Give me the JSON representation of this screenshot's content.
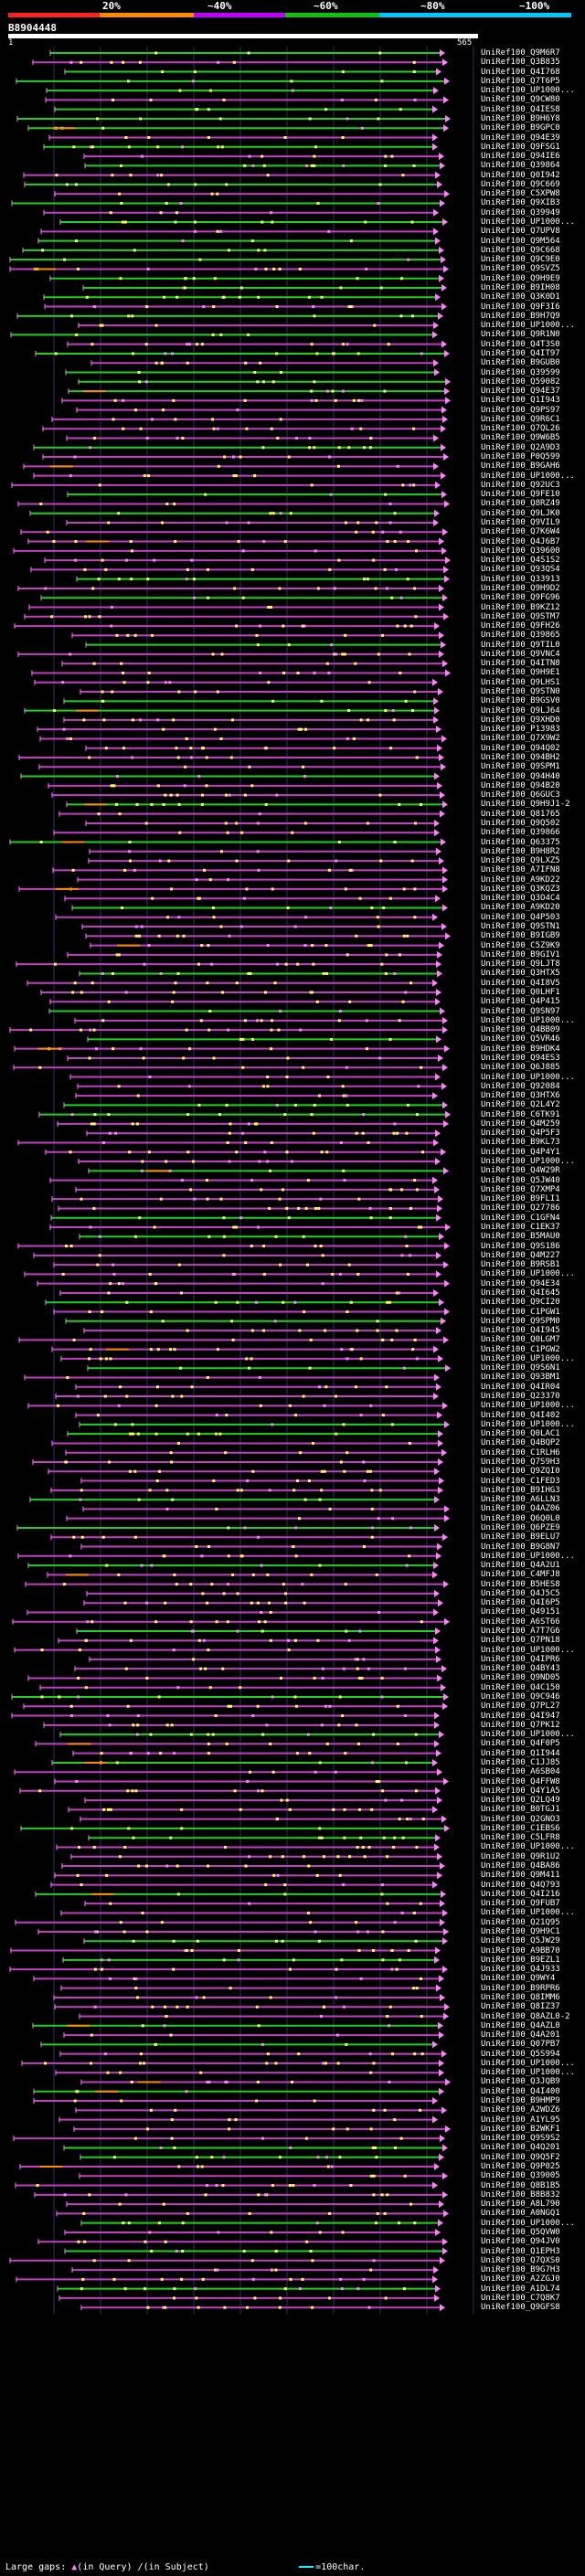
{
  "scale": {
    "labels": [
      "20%",
      "~40%",
      "~60%",
      "~80%",
      "~100%"
    ],
    "colors": [
      "#ff2020",
      "#ff8c00",
      "#c000ff",
      "#10c010",
      "#00c8ff"
    ]
  },
  "query": {
    "name": "B8904448",
    "start": "1",
    "end": "565"
  },
  "footer": {
    "gaps_label": "Large gaps:",
    "in_query": "(in Query)",
    "in_subject": "(in Subject)",
    "scale_label": "=100char.",
    "scale_color": "#00ffff"
  },
  "colors": {
    "purple": "#c040c0",
    "green": "#20d020",
    "pink": "#ff80ff",
    "yellow": "#ffff60",
    "orange": "#ff8c00",
    "grid": "#303060"
  },
  "hits": [
    "UniRef100_Q9M6R7",
    "UniRef100_Q3B835",
    "UniRef100_Q4I768",
    "UniRef100_Q7T6P5",
    "UniRef100_UP1000...",
    "UniRef100_Q9CW80",
    "UniRef100_Q4IES8",
    "UniRef100_B9H6Y8",
    "UniRef100_B9GPC0",
    "UniRef100_Q94E39",
    "UniRef100_Q9FSG1",
    "UniRef100_Q94IE6",
    "UniRef100_Q39864",
    "UniRef100_Q0I942",
    "UniRef100_Q9C669",
    "UniRef100_C5XPW8",
    "UniRef100_Q9XIB3",
    "UniRef100_Q39949",
    "UniRef100_UP1000...",
    "UniRef100_Q7UPV8",
    "UniRef100_Q9M564",
    "UniRef100_Q9C668",
    "UniRef100_Q9C9E0",
    "UniRef100_Q9SVZ5",
    "UniRef100_Q9H9E9",
    "UniRef100_B9IH08",
    "UniRef100_Q3K0D1",
    "UniRef100_Q9F3I6",
    "UniRef100_B9H7Q9",
    "UniRef100_UP1000...",
    "UniRef100_Q9R1N0",
    "UniRef100_Q4T3S0",
    "UniRef100_Q4IT97",
    "UniRef100_B9GUB0",
    "UniRef100_Q39599",
    "UniRef100_Q59082",
    "UniRef100_Q94E37",
    "UniRef100_Q1I943",
    "UniRef100_Q9PS97",
    "UniRef100_Q9R6C1",
    "UniRef100_Q7QL26",
    "UniRef100_Q9W6B5",
    "UniRef100_Q2A9D3",
    "UniRef100_P0Q599",
    "UniRef100_B9GAH6",
    "UniRef100_UP1000...",
    "UniRef100_Q92UC3",
    "UniRef100_Q9FE10",
    "UniRef100_Q8RZ49",
    "UniRef100_Q9LJK0",
    "UniRef100_Q9VIL9",
    "UniRef100_Q7K6W4",
    "UniRef100_Q4J6B7",
    "UniRef100_Q39600",
    "UniRef100_Q4S1S2",
    "UniRef100_Q93QS4",
    "UniRef100_Q33913",
    "UniRef100_Q9H9D2",
    "UniRef100_Q9FG96",
    "UniRef100_B9KZ12",
    "UniRef100_Q9STM7",
    "UniRef100_Q9FH26",
    "UniRef100_Q39865",
    "UniRef100_Q9TIL0",
    "UniRef100_Q9VNC4",
    "UniRef100_Q4ITN8",
    "UniRef100_Q9H9E1",
    "UniRef100_Q9LHS1",
    "UniRef100_Q9STN0",
    "UniRef100_B9GSV0",
    "UniRef100_Q9LJ64",
    "UniRef100_Q9XHD0",
    "UniRef100_P13983",
    "UniRef100_Q7X9W2",
    "UniRef100_Q94Q02",
    "UniRef100_Q94BH2",
    "UniRef100_Q9SPM1",
    "UniRef100_Q94H40",
    "UniRef100_Q94B20",
    "UniRef100_Q6GUC3",
    "UniRef100_Q9H9J1-2",
    "UniRef100_Q81765",
    "UniRef100_Q9Q502",
    "UniRef100_Q39866",
    "UniRef100_Q63375",
    "UniRef100_B9H8R2",
    "UniRef100_Q9LXZ5",
    "UniRef100_A7IFN8",
    "UniRef100_A9KD22",
    "UniRef100_Q3KQZ3",
    "UniRef100_Q3O4C4",
    "UniRef100_A9KD20",
    "UniRef100_Q4P503",
    "UniRef100_Q9STN1",
    "UniRef100_B9IGB9",
    "UniRef100_C5Z9K9",
    "UniRef100_B9GIV1",
    "UniRef100_Q9LJT8",
    "UniRef100_Q3HTX5",
    "UniRef100_Q4I8V5",
    "UniRef100_Q0LHF1",
    "UniRef100_Q4P415",
    "UniRef100_Q9SN97",
    "UniRef100_UP1000...",
    "UniRef100_Q4BB09",
    "UniRef100_Q5VR46",
    "UniRef100_B9HDK4",
    "UniRef100_Q94ES3",
    "UniRef100_Q6J885",
    "UniRef100_UP1000...",
    "UniRef100_Q92084",
    "UniRef100_Q3HTX6",
    "UniRef100_Q2L4Y2",
    "UniRef100_C6TK91",
    "UniRef100_Q4M259",
    "UniRef100_Q4P5F3",
    "UniRef100_B9KL73",
    "UniRef100_Q4P4Y1",
    "UniRef100_UP1000...",
    "UniRef100_Q4W29R",
    "UniRef100_Q5JW40",
    "UniRef100_Q7XMP4",
    "UniRef100_B9FLI1",
    "UniRef100_Q27786",
    "UniRef100_C1GFN4",
    "UniRef100_C1EK37",
    "UniRef100_B5MAU0",
    "UniRef100_Q9S186",
    "UniRef100_Q4M227",
    "UniRef100_B9RSB1",
    "UniRef100_UP1000...",
    "UniRef100_Q94E34",
    "UniRef100_Q4I645",
    "UniRef100_Q9CI20",
    "UniRef100_C1PGW1",
    "UniRef100_Q9SPM0",
    "UniRef100_Q4I945",
    "UniRef100_Q0LGM7",
    "UniRef100_C1PGW2",
    "UniRef100_UP1000...",
    "UniRef100_Q9S6N1",
    "UniRef100_Q93BM1",
    "UniRef100_Q4IR04",
    "UniRef100_Q23370",
    "UniRef100_UP1000...",
    "UniRef100_Q4I402",
    "UniRef100_UP1000...",
    "UniRef100_Q0LAC1",
    "UniRef100_Q4BQP2",
    "UniRef100_C1RLH6",
    "UniRef100_Q7S9H3",
    "UniRef100_Q9ZQI0",
    "UniRef100_C1FED3",
    "UniRef100_B9IHG3",
    "UniRef100_A6LLN3",
    "UniRef100_Q4AZ06",
    "UniRef100_Q6Q0L0",
    "UniRef100_Q6PZE9",
    "UniRef100_B9ELU7",
    "UniRef100_B9G8N7",
    "UniRef100_UP1000...",
    "UniRef100_Q4A2U1",
    "UniRef100_C4MFJ8",
    "UniRef100_B5HES8",
    "UniRef100_Q4J5C5",
    "UniRef100_Q4I6P5",
    "UniRef100_Q49151",
    "UniRef100_A6ST66",
    "UniRef100_A7T7G6",
    "UniRef100_Q7PN18",
    "UniRef100_UP1000...",
    "UniRef100_Q4IPR6",
    "UniRef100_Q4BY43",
    "UniRef100_Q9ND05",
    "UniRef100_Q4C150",
    "UniRef100_Q9C946",
    "UniRef100_Q7PL27",
    "UniRef100_Q4I947",
    "UniRef100_Q7PK12",
    "UniRef100_UP1000...",
    "UniRef100_Q4F0P5",
    "UniRef100_Q1I944",
    "UniRef100_C1JJ85",
    "UniRef100_A6SB04",
    "UniRef100_Q4FFW8",
    "UniRef100_Q4Y1A5",
    "UniRef100_Q2LQ49",
    "UniRef100_B0TGJ1",
    "UniRef100_Q2GNO3",
    "UniRef100_C1EBS6",
    "UniRef100_C5LFR8",
    "UniRef100_UP1000...",
    "UniRef100_Q9R1U2",
    "UniRef100_Q4BA86",
    "UniRef100_Q9M411",
    "UniRef100_Q4Q793",
    "UniRef100_Q4I216",
    "UniRef100_Q9FUB7",
    "UniRef100_UP1000...",
    "UniRef100_Q21Q95",
    "UniRef100_Q9H9C1",
    "UniRef100_Q5JW29",
    "UniRef100_A9BB70",
    "UniRef100_B9EZL1",
    "UniRef100_Q4J933",
    "UniRef100_Q9WY4",
    "UniRef100_B9RPR6",
    "UniRef100_Q8IMM6",
    "UniRef100_Q8IZ37",
    "UniRef100_Q8AZL0-2",
    "UniRef100_Q4AZL0",
    "UniRef100_Q4A201",
    "UniRef100_Q07PB7",
    "UniRef100_Q5S994",
    "UniRef100_UP1000...",
    "UniRef100_UP1000...",
    "UniRef100_Q3JQB9",
    "UniRef100_Q4I400",
    "UniRef100_B9HMP9",
    "UniRef100_A2WDZ6",
    "UniRef100_A1YL95",
    "UniRef100_B2WKF1",
    "UniRef100_Q9S9S2",
    "UniRef100_Q4Q201",
    "UniRef100_Q9Q5F2",
    "UniRef100_Q9P025",
    "UniRef100_Q39005",
    "UniRef100_Q8B1B5",
    "UniRef100_B8B832",
    "UniRef100_A8L790",
    "UniRef100_A0NGQ1",
    "UniRef100_UP1000...",
    "UniRef100_Q5QVW0",
    "UniRef100_Q94JV0",
    "UniRef100_Q1EPH3",
    "UniRef100_Q7QXS0",
    "UniRef100_B9G7H3",
    "UniRef100_A2ZGJ0",
    "UniRef100_A1DL74",
    "UniRef100_C7Q8K7",
    "UniRef100_Q9GFS8"
  ]
}
